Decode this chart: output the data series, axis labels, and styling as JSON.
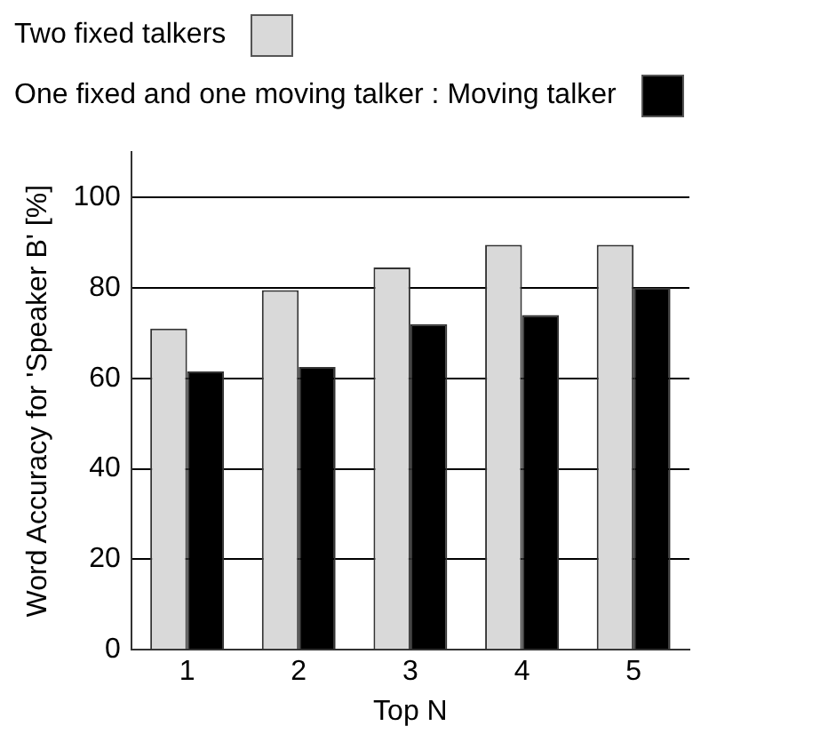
{
  "chart_data": {
    "type": "bar",
    "xlabel": "Top N",
    "ylabel": "Word Accuracy for 'Speaker B' [%]",
    "categories": [
      "1",
      "2",
      "3",
      "4",
      "5"
    ],
    "series": [
      {
        "name": "Two fixed talkers",
        "color": "#d9d9d9",
        "values": [
          71,
          79.5,
          84.5,
          89.5,
          89.5
        ]
      },
      {
        "name": "One fixed and one moving talker : Moving talker",
        "color": "#000000",
        "values": [
          61.5,
          62.5,
          72,
          74,
          80
        ]
      }
    ],
    "ylim": [
      0,
      110
    ],
    "yticks": [
      0,
      20,
      40,
      60,
      80,
      100
    ],
    "grid": "y",
    "legend": "top left"
  }
}
